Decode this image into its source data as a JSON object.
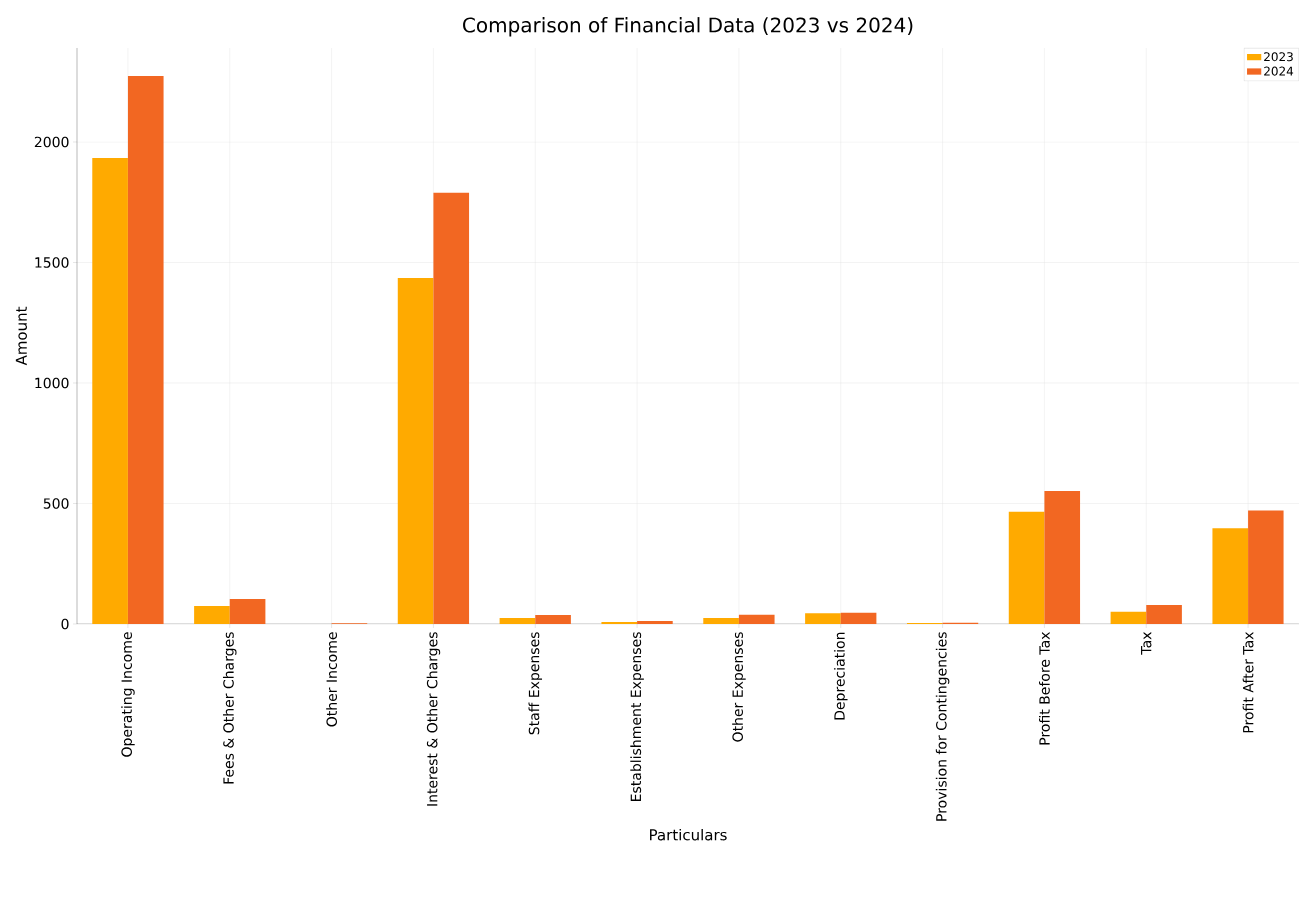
{
  "chart_data": {
    "type": "bar",
    "title": "Comparison of Financial Data (2023 vs 2024)",
    "xlabel": "Particulars",
    "ylabel": "Amount",
    "categories": [
      "Operating Income",
      "Fees & Other Charges",
      "Other Income",
      "Interest & Other Charges",
      "Staff Expenses",
      "Establishment Expenses",
      "Other Expenses",
      "Depreciation",
      "Provision for Contingencies",
      "Profit Before Tax",
      "Tax",
      "Profit After Tax"
    ],
    "series": [
      {
        "name": "2023",
        "color": "#ffaa00",
        "values": [
          1934,
          75,
          null,
          1436,
          25,
          8,
          25,
          45,
          4,
          466,
          51,
          397
        ]
      },
      {
        "name": "2024",
        "color": "#f26722",
        "values": [
          2274,
          104,
          3,
          1789,
          37,
          12,
          38,
          47,
          5,
          552,
          79,
          471
        ]
      }
    ],
    "ylim": [
      0,
      2390
    ],
    "yticks": [
      0,
      500,
      1000,
      1500,
      2000
    ],
    "grid": true,
    "legend": "top right"
  }
}
